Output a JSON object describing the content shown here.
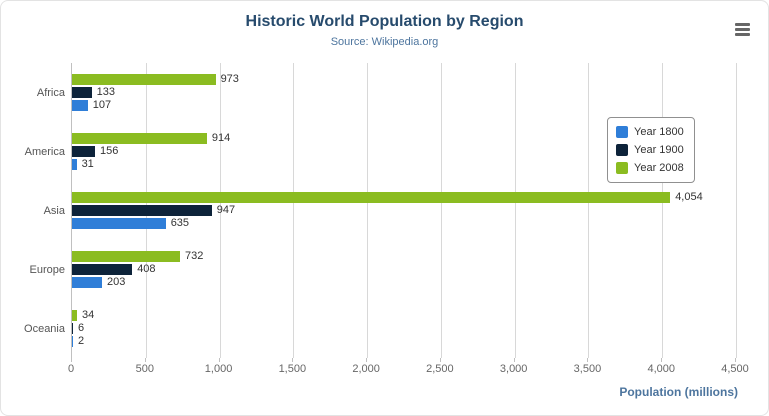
{
  "icons": {
    "context_menu": "hamburger"
  },
  "chart_data": {
    "type": "bar",
    "orientation": "horizontal",
    "title": "Historic World Population by Region",
    "subtitle": "Source: Wikipedia.org",
    "categories": [
      "Africa",
      "America",
      "Asia",
      "Europe",
      "Oceania"
    ],
    "series": [
      {
        "name": "Year 1800",
        "color": "#2f7ed8",
        "values": [
          107,
          31,
          635,
          203,
          2
        ]
      },
      {
        "name": "Year 1900",
        "color": "#0d233a",
        "values": [
          133,
          156,
          947,
          408,
          6
        ]
      },
      {
        "name": "Year 2008",
        "color": "#8bbc21",
        "values": [
          973,
          914,
          4054,
          732,
          34
        ]
      }
    ],
    "xlabel": "Population (millions)",
    "ylabel": "",
    "xlim": [
      0,
      4500
    ],
    "xticks": [
      0,
      500,
      1000,
      1500,
      2000,
      2500,
      3000,
      3500,
      4000,
      4500
    ],
    "grid": true,
    "legend_position": "right-inside"
  }
}
